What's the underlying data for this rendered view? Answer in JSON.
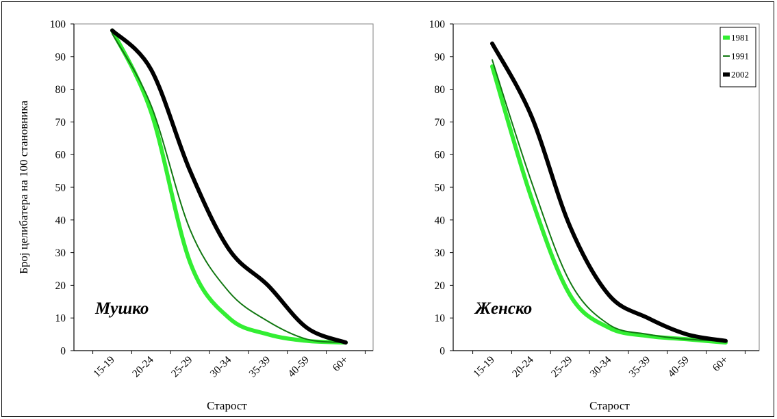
{
  "chart_data": [
    {
      "type": "line",
      "panel_label": "Мушко",
      "categories": [
        "15-19",
        "20-24",
        "25-29",
        "30-34",
        "35-39",
        "40-59",
        "60+"
      ],
      "ylabel": "Број целибатера на 100 становника",
      "xlabel": "Старост",
      "ylim": [
        0,
        100
      ],
      "yticks": [
        "0",
        "10",
        "20",
        "30",
        "40",
        "50",
        "60",
        "70",
        "80",
        "90",
        "100"
      ],
      "grid": false,
      "series": [
        {
          "name": "1981",
          "color": "#33ee33",
          "stroke_width": 6,
          "values": [
            98,
            73,
            27,
            10,
            5,
            3,
            2.5
          ]
        },
        {
          "name": "1991",
          "color": "#117711",
          "stroke_width": 2,
          "values": [
            97,
            75,
            37,
            18,
            9,
            3.5,
            2.5
          ]
        },
        {
          "name": "2002",
          "color": "#000000",
          "stroke_width": 6,
          "values": [
            98,
            86,
            55,
            31,
            20,
            7,
            2.5
          ]
        }
      ]
    },
    {
      "type": "line",
      "panel_label": "Женско",
      "categories": [
        "15-19",
        "20-24",
        "25-29",
        "30-34",
        "35-39",
        "40-59",
        "60+"
      ],
      "ylabel": "",
      "xlabel": "Старост",
      "ylim": [
        0,
        100
      ],
      "yticks": [
        "0",
        "10",
        "20",
        "30",
        "40",
        "50",
        "60",
        "70",
        "80",
        "90",
        "100"
      ],
      "grid": false,
      "legend_position": "top-right",
      "series": [
        {
          "name": "1981",
          "color": "#33ee33",
          "stroke_width": 6,
          "values": [
            87,
            47,
            17,
            7,
            4.5,
            3.5,
            2.5
          ]
        },
        {
          "name": "1991",
          "color": "#117711",
          "stroke_width": 2,
          "values": [
            89,
            52,
            21,
            8,
            5,
            3.5,
            3
          ]
        },
        {
          "name": "2002",
          "color": "#000000",
          "stroke_width": 6,
          "values": [
            94,
            72,
            38,
            17,
            10,
            5,
            3
          ]
        }
      ]
    }
  ],
  "legend": {
    "items": [
      {
        "name": "1981",
        "color": "#33ee33"
      },
      {
        "name": "1991",
        "color": "#117711"
      },
      {
        "name": "2002",
        "color": "#000000"
      }
    ]
  }
}
